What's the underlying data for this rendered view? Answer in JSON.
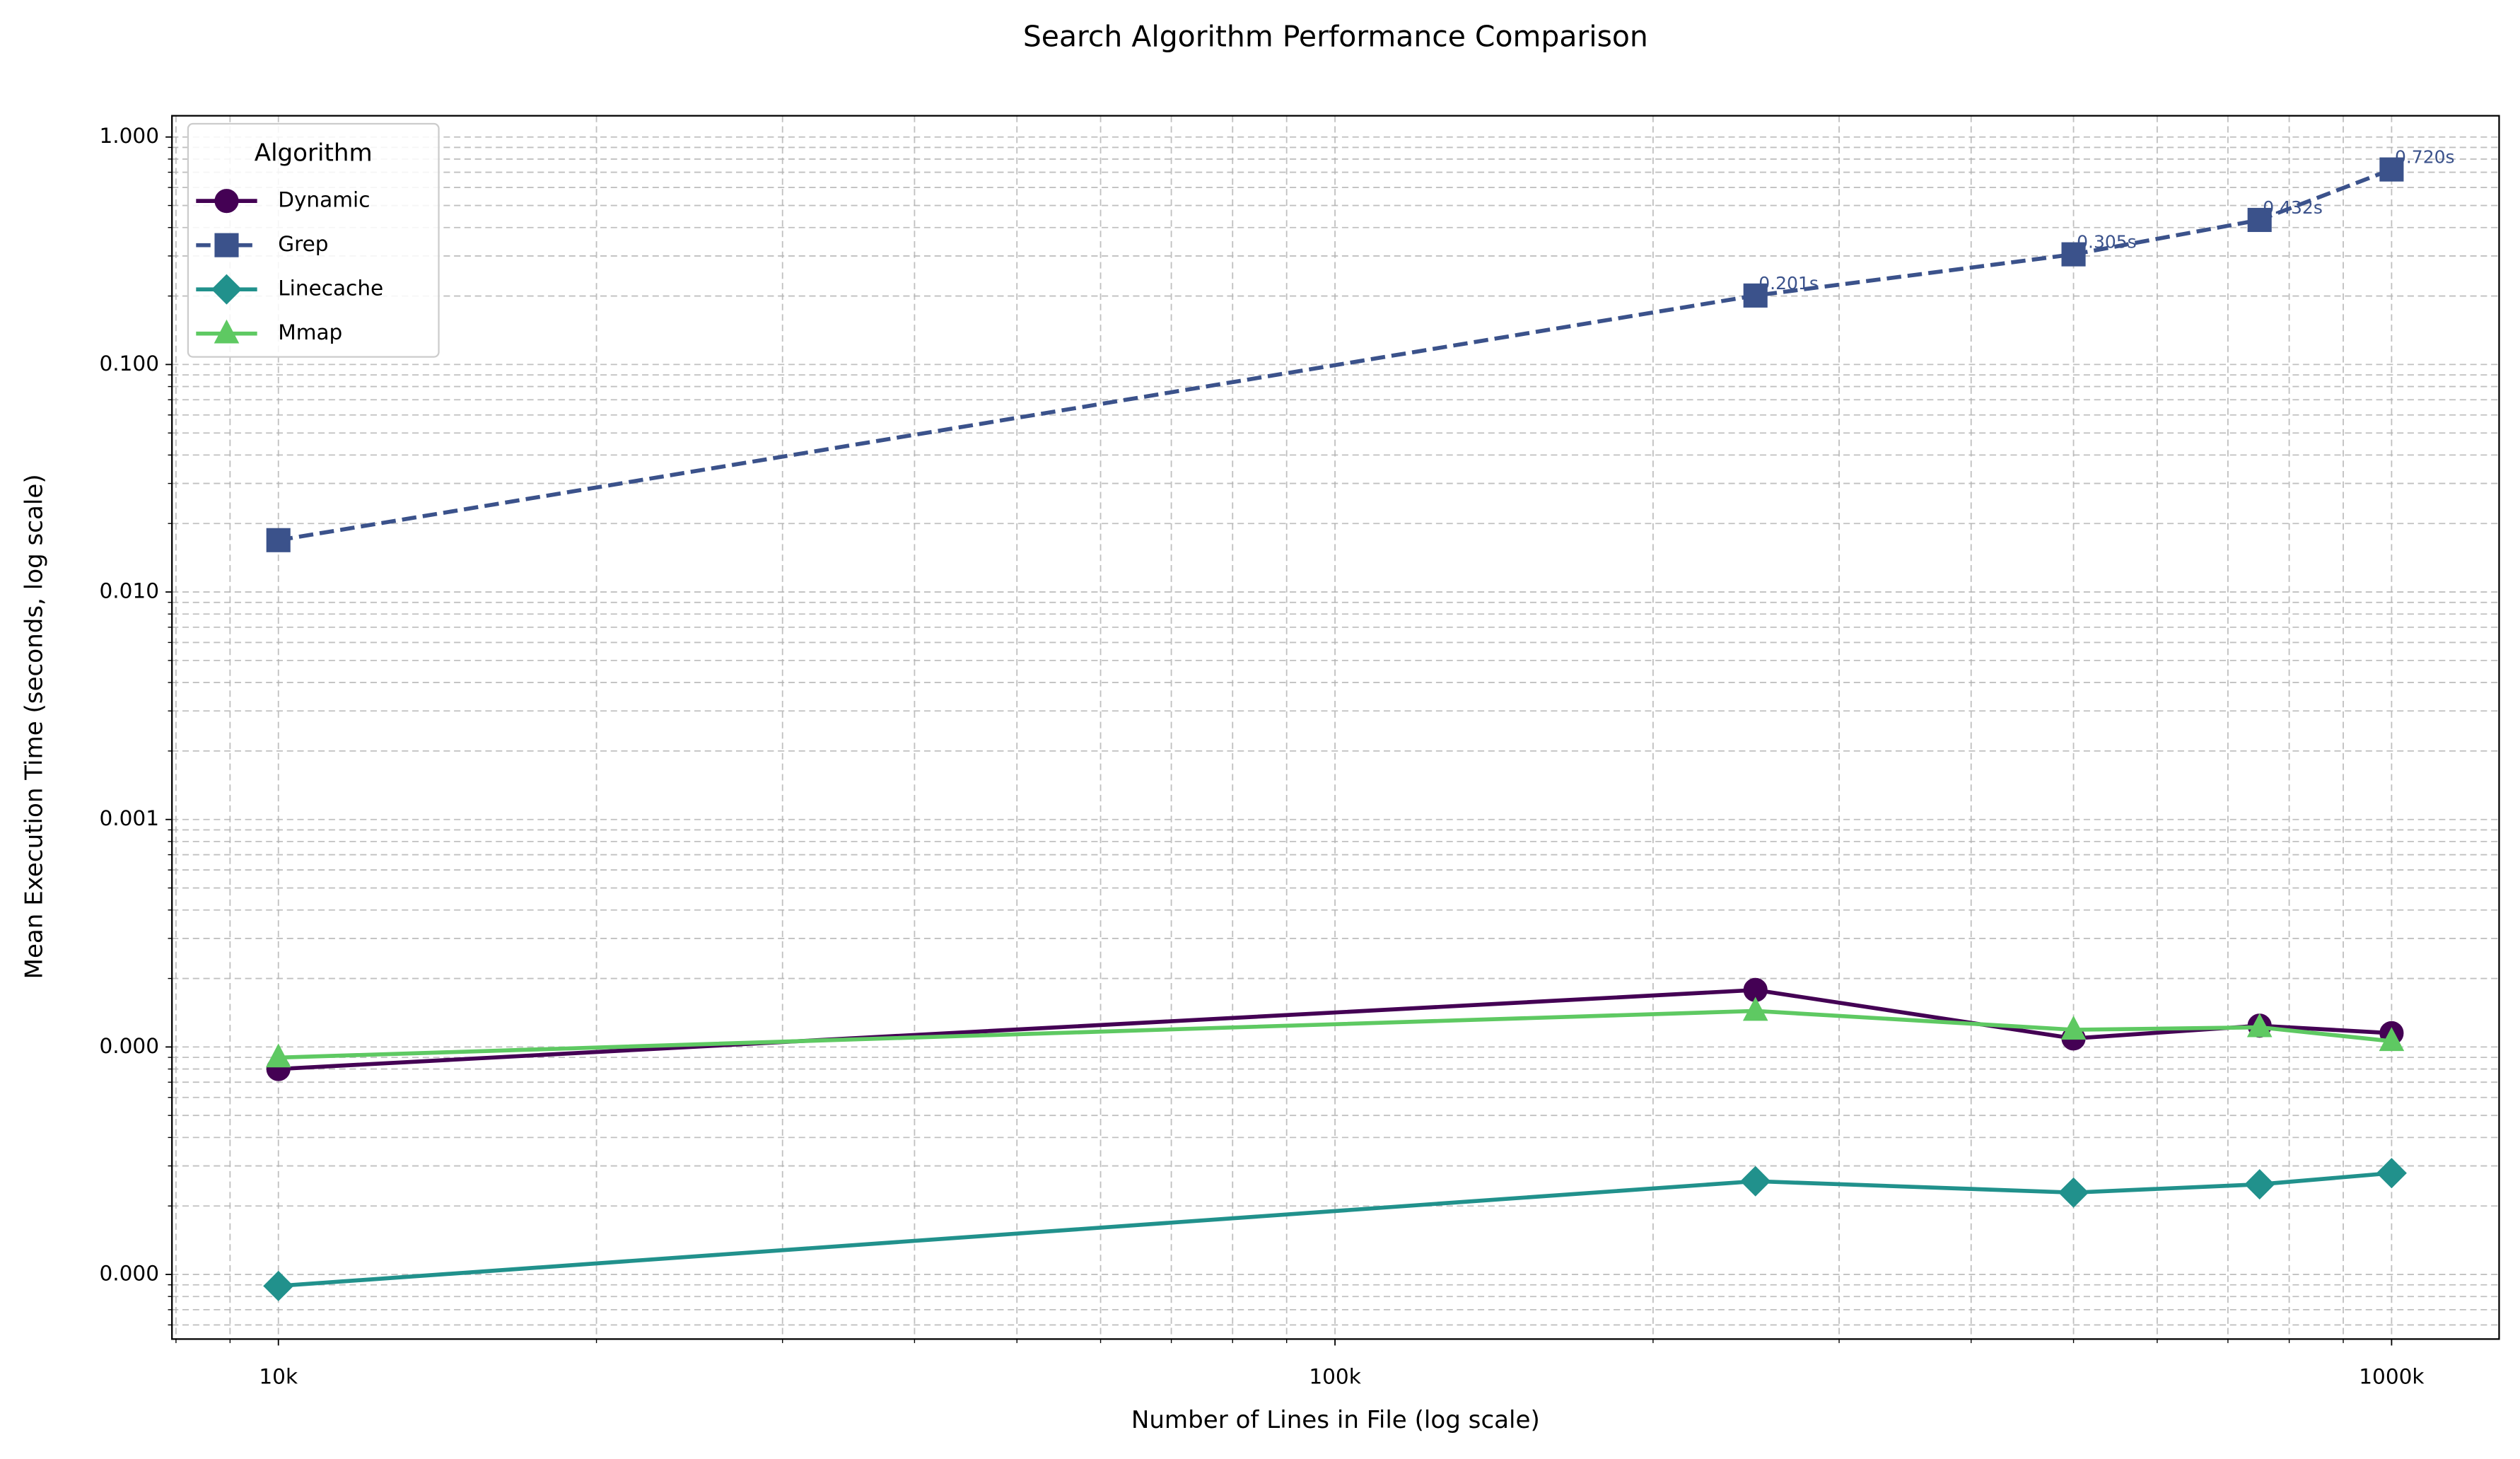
{
  "chart_data": {
    "type": "line",
    "title": "Search Algorithm Performance Comparison",
    "x_label": "Number of Lines in File (log scale)",
    "y_label": "Mean Execution Time (seconds, log scale)",
    "x": [
      10000,
      250000,
      500000,
      750000,
      1000000
    ],
    "series": [
      {
        "name": "Dynamic",
        "color": "#440154",
        "marker": "circle",
        "linestyle": "solid",
        "values": [
          8e-05,
          0.000178,
          0.000109,
          0.000124,
          0.000115
        ]
      },
      {
        "name": "Grep",
        "color": "#3b528b",
        "marker": "square",
        "linestyle": "dashed",
        "values": [
          0.0169,
          0.201,
          0.305,
          0.432,
          0.72
        ],
        "value_labels": [
          null,
          "0.201s",
          "0.305s",
          "0.432s",
          "0.720s"
        ]
      },
      {
        "name": "Linecache",
        "color": "#21918c",
        "marker": "diamond",
        "linestyle": "solid",
        "values": [
          8.9e-06,
          2.57e-05,
          2.29e-05,
          2.49e-05,
          2.79e-05
        ]
      },
      {
        "name": "Mmap",
        "color": "#5ec962",
        "marker": "triangle",
        "linestyle": "solid",
        "values": [
          8.98e-05,
          0.000144,
          0.000119,
          0.000122,
          0.000106
        ]
      }
    ],
    "xscale": "log",
    "yscale": "log",
    "xlim": [
      7930,
      1264000
    ],
    "ylim": [
      5.2e-06,
      1.24
    ],
    "xticks": [
      {
        "value": 10000,
        "label": "10k"
      },
      {
        "value": 100000,
        "label": "100k"
      },
      {
        "value": 1000000,
        "label": "1000k"
      }
    ],
    "yticks": [
      {
        "value": 1e-05,
        "label": "0.000"
      },
      {
        "value": 0.0001,
        "label": "0.000"
      },
      0.001,
      {
        "value": 0.01,
        "label": "0.010"
      },
      {
        "value": 0.1,
        "label": "0.100"
      },
      {
        "value": 1,
        "label": "1.000"
      }
    ],
    "xminorticks": [
      8000,
      9000,
      20000,
      30000,
      40000,
      50000,
      60000,
      70000,
      80000,
      90000,
      200000,
      300000,
      400000,
      500000,
      600000,
      700000,
      800000,
      900000
    ],
    "yminorticks": [
      6e-06,
      7e-06,
      8e-06,
      9e-06,
      2e-05,
      3e-05,
      4e-05,
      5e-05,
      6e-05,
      7e-05,
      8e-05,
      9e-05,
      0.0002,
      0.0003,
      0.0004,
      0.0005,
      0.0006,
      0.0007,
      0.0008,
      0.0009,
      0.002,
      0.003,
      0.004,
      0.005,
      0.006,
      0.007,
      0.008,
      0.009,
      0.02,
      0.03,
      0.04,
      0.05,
      0.06,
      0.07,
      0.08,
      0.09,
      0.2,
      0.3,
      0.4,
      0.5,
      0.6,
      0.7,
      0.8,
      0.9
    ],
    "grid": true,
    "legend_title": "Algorithm",
    "legend_position": "upper-left"
  }
}
